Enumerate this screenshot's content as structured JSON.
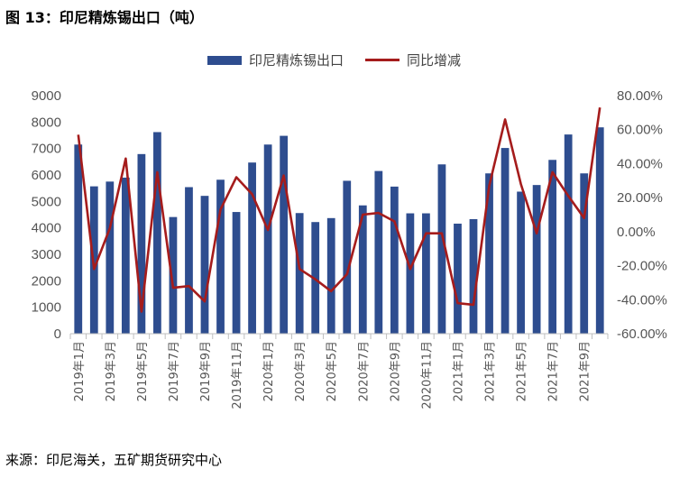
{
  "figure": {
    "title": "图 13：印尼精炼锡出口（吨）",
    "source": "来源：印尼海关，五矿期货研究中心"
  },
  "colors": {
    "bar": "#2E4D8F",
    "line": "#A51C1C"
  },
  "chart_data": {
    "type": "bar",
    "categories": [
      "2019年1月",
      "2019年2月",
      "2019年3月",
      "2019年4月",
      "2019年5月",
      "2019年6月",
      "2019年7月",
      "2019年8月",
      "2019年9月",
      "2019年10月",
      "2019年11月",
      "2019年12月",
      "2020年1月",
      "2020年2月",
      "2020年3月",
      "2020年4月",
      "2020年5月",
      "2020年6月",
      "2020年7月",
      "2020年8月",
      "2020年9月",
      "2020年10月",
      "2020年11月",
      "2020年12月",
      "2021年1月",
      "2021年2月",
      "2021年3月",
      "2021年4月",
      "2021年5月",
      "2021年6月",
      "2021年7月",
      "2021年8月",
      "2021年9月",
      "2021年10月"
    ],
    "tick_labels": [
      "2019年1月",
      "2019年3月",
      "2019年5月",
      "2019年7月",
      "2019年9月",
      "2019年11月",
      "2020年1月",
      "2020年3月",
      "2020年5月",
      "2020年7月",
      "2020年9月",
      "2020年11月",
      "2021年1月",
      "2021年3月",
      "2021年5月",
      "2021年7月",
      "2021年9月"
    ],
    "series": [
      {
        "name": "印尼精炼锡出口",
        "type": "bar",
        "axis": "left",
        "values": [
          7150,
          5570,
          5750,
          5900,
          6790,
          7620,
          4410,
          5540,
          5210,
          5820,
          4600,
          6470,
          7150,
          7480,
          4560,
          4220,
          4370,
          5780,
          4850,
          6150,
          5560,
          4550,
          4550,
          6400,
          4160,
          4330,
          6060,
          7020,
          5370,
          5620,
          6570,
          7530,
          6060,
          7800
        ]
      },
      {
        "name": "同比增减",
        "type": "line",
        "axis": "right",
        "values": [
          57,
          -22,
          2,
          43,
          -47,
          35,
          -33,
          -32,
          -41,
          13,
          32,
          22,
          1,
          33,
          -22,
          -28,
          -35,
          -25,
          10,
          11,
          6,
          -22,
          -1,
          -1,
          -42,
          -43,
          27,
          66,
          28,
          -1,
          35,
          21,
          8,
          73
        ]
      }
    ],
    "y_left": {
      "min": 0,
      "max": 9000,
      "step": 1000,
      "ticks": [
        "0",
        "1000",
        "2000",
        "3000",
        "4000",
        "5000",
        "6000",
        "7000",
        "8000",
        "9000"
      ]
    },
    "y_right": {
      "min": -60,
      "max": 80,
      "step": 20,
      "ticks": [
        "-60.00%",
        "-40.00%",
        "-20.00%",
        "0.00%",
        "20.00%",
        "40.00%",
        "60.00%",
        "80.00%"
      ]
    },
    "legend": "top-center",
    "grid": false
  }
}
